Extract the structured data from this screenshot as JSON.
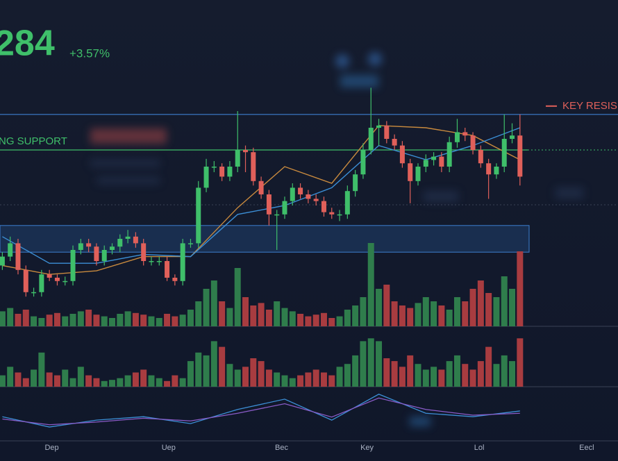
{
  "header": {
    "price": "284",
    "change": "+3.57%"
  },
  "chart_data": [
    {
      "type": "candlestick",
      "xlim": [
        -0.3,
        78.5
      ],
      "ylim": [
        0,
        100
      ],
      "xticks": [
        {
          "value": 6.3,
          "label": "Dep"
        },
        {
          "value": 21.2,
          "label": "Uep"
        },
        {
          "value": 35.6,
          "label": "Bec"
        },
        {
          "value": 46.5,
          "label": "Key"
        },
        {
          "value": 60.8,
          "label": "Lol"
        },
        {
          "value": 74.5,
          "label": "Eecl"
        }
      ],
      "up_color": "#3fbf6a",
      "down_color": "#e0605a",
      "open": [
        18,
        22,
        28,
        16,
        6,
        6,
        14,
        12.5,
        11,
        11,
        25,
        28,
        26.5,
        20,
        25,
        26.5,
        30,
        31,
        28,
        20,
        20,
        20,
        12.5,
        11,
        28,
        28,
        53,
        62.5,
        62.5,
        58,
        62.5,
        70,
        69,
        56,
        50,
        41,
        41,
        47,
        53,
        50,
        48,
        47,
        42,
        41,
        41,
        51.5,
        59,
        70,
        80,
        81,
        75,
        72,
        64,
        56,
        62.5,
        65.5,
        67,
        62.5,
        73.5,
        78,
        76.5,
        70,
        64,
        59,
        62.5,
        75,
        76.5
      ],
      "high": [
        24,
        31,
        30,
        18,
        8,
        16,
        16,
        14,
        13,
        27,
        30,
        30,
        28,
        27,
        28,
        32,
        34,
        33,
        30,
        22,
        22,
        22,
        14,
        30,
        30,
        56,
        66,
        65,
        64,
        65,
        87.5,
        72,
        71,
        58,
        52,
        43,
        49,
        55,
        55,
        52,
        50,
        49,
        44,
        43,
        54,
        61,
        73,
        98,
        84,
        83,
        77,
        74,
        66,
        64,
        68,
        69,
        69,
        76,
        84,
        80,
        78,
        72,
        66,
        64,
        86,
        82,
        86
      ],
      "low": [
        16,
        20,
        14,
        4,
        4,
        4,
        11,
        9,
        9,
        9,
        23,
        24,
        18,
        18,
        23,
        24,
        28,
        26,
        18,
        18,
        18,
        11,
        9,
        9,
        26,
        26,
        51,
        60,
        56,
        56,
        60,
        60,
        54,
        48,
        36,
        25,
        39,
        45,
        48,
        46,
        45,
        40,
        39,
        38,
        39,
        49,
        57,
        68,
        72,
        73,
        70,
        62,
        46,
        54,
        60,
        63,
        60,
        60,
        71,
        74,
        68,
        62,
        48,
        57,
        60,
        73,
        54
      ],
      "close": [
        22,
        28,
        16,
        6,
        6,
        14,
        12.5,
        11,
        11,
        25,
        28,
        26.5,
        20,
        25,
        26.5,
        30,
        31,
        28,
        20,
        20,
        20,
        12.5,
        11,
        28,
        28,
        53,
        62.5,
        62.5,
        58,
        62.5,
        70,
        69,
        56,
        50,
        41,
        41,
        47,
        53,
        50,
        48,
        47,
        42,
        41,
        41,
        51.5,
        59,
        70,
        80,
        81,
        75,
        72,
        64,
        56,
        62.5,
        65.5,
        67,
        62.5,
        73.5,
        78,
        76.5,
        70,
        64,
        59,
        62.5,
        75,
        76.5,
        58
      ],
      "overlays": [
        {
          "color": "#c98a3e",
          "x": [
            0,
            6,
            12,
            18,
            24,
            30,
            36,
            42,
            48,
            54,
            60,
            66
          ],
          "values": [
            18,
            14,
            15.6,
            22,
            22,
            44,
            62.5,
            55,
            81,
            80,
            76.5,
            65.6
          ]
        },
        {
          "color": "#3c8fd6",
          "x": [
            0,
            6,
            12,
            18,
            24,
            30,
            36,
            42,
            48,
            54,
            60,
            66
          ],
          "values": [
            31,
            19,
            19,
            23,
            22,
            41,
            45,
            53,
            72,
            65.6,
            72,
            80
          ]
        }
      ],
      "resistance": {
        "label": "KEY RESIS",
        "value": 86
      },
      "support": {
        "label": "NG SUPPORT",
        "value": 70
      },
      "zone": [
        24,
        36
      ]
    },
    {
      "type": "bar",
      "xlim": [
        -0.3,
        78.5
      ],
      "ylim": [
        0,
        100
      ],
      "up_color": "#2f7d4c",
      "down_color": "#a83c40",
      "values": [
        18,
        22,
        15,
        20,
        12,
        10,
        14,
        16,
        12,
        15,
        18,
        20,
        14,
        12,
        10,
        15,
        18,
        16,
        14,
        12,
        10,
        15,
        12,
        14,
        20,
        30,
        45,
        55,
        30,
        22,
        70,
        35,
        25,
        28,
        20,
        30,
        22,
        18,
        15,
        12,
        14,
        16,
        10,
        12,
        20,
        25,
        35,
        100,
        45,
        50,
        30,
        25,
        22,
        28,
        35,
        30,
        25,
        20,
        35,
        30,
        45,
        55,
        40,
        35,
        60,
        45,
        90
      ]
    },
    {
      "type": "bar",
      "xlim": [
        -0.3,
        78.5
      ],
      "ylim": [
        0,
        100
      ],
      "up_color": "#2f7d4c",
      "down_color": "#a83c40",
      "values": [
        20,
        35,
        25,
        15,
        30,
        60,
        25,
        20,
        30,
        15,
        35,
        20,
        15,
        10,
        12,
        15,
        20,
        25,
        30,
        20,
        15,
        10,
        20,
        15,
        45,
        60,
        55,
        80,
        70,
        40,
        30,
        35,
        50,
        45,
        30,
        25,
        20,
        15,
        20,
        25,
        30,
        25,
        20,
        35,
        40,
        55,
        80,
        85,
        80,
        50,
        45,
        35,
        55,
        40,
        30,
        35,
        30,
        45,
        55,
        40,
        30,
        45,
        70,
        40,
        55,
        45,
        85
      ]
    },
    {
      "type": "line",
      "xlim": [
        -0.3,
        78.5
      ],
      "ylim": [
        0,
        100
      ],
      "series": [
        {
          "color": "#3c8fd6",
          "x": [
            0,
            6,
            12,
            18,
            24,
            30,
            36,
            42,
            48,
            54,
            60,
            66
          ],
          "values": [
            36,
            9,
            27,
            36,
            18,
            55,
            82,
            27,
            95,
            45,
            36,
            51
          ]
        },
        {
          "color": "#8a5cc8",
          "x": [
            0,
            6,
            12,
            18,
            24,
            30,
            36,
            42,
            48,
            54,
            60,
            66
          ],
          "values": [
            30,
            15,
            22,
            32,
            25,
            45,
            70,
            35,
            85,
            55,
            40,
            45
          ]
        }
      ]
    }
  ]
}
